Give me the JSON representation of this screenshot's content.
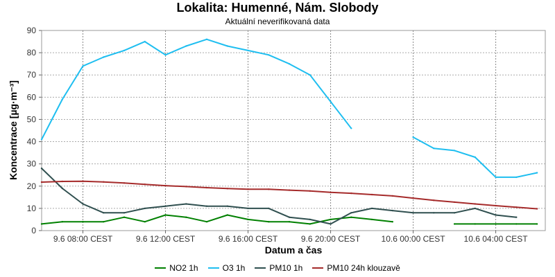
{
  "chart_data": {
    "type": "line",
    "title": "Lokalita: Humenné, Nám. Slobody",
    "subtitle": "Aktuální neverifikovaná data",
    "xlabel": "Datum a čas",
    "ylabel": "Koncentrace [µg·m⁻³]",
    "ylim": [
      0,
      90
    ],
    "yticks": [
      0,
      10,
      20,
      30,
      40,
      50,
      60,
      70,
      80,
      90
    ],
    "x_hours": [
      6,
      7,
      8,
      9,
      10,
      11,
      12,
      13,
      14,
      15,
      16,
      17,
      18,
      19,
      20,
      21,
      22,
      23,
      24,
      25,
      26,
      27,
      28,
      29,
      30
    ],
    "x_range": [
      6,
      30.4
    ],
    "xticks": [
      {
        "hour": 8,
        "label": "9.6 08:00 CEST"
      },
      {
        "hour": 12,
        "label": "9.6 12:00 CEST"
      },
      {
        "hour": 16,
        "label": "9.6 16:00 CEST"
      },
      {
        "hour": 20,
        "label": "9.6 20:00 CEST"
      },
      {
        "hour": 24,
        "label": "10.6 00:00 CEST"
      },
      {
        "hour": 28,
        "label": "10.6 04:00 CEST"
      }
    ],
    "grid": true,
    "legend_position": "bottom",
    "series": [
      {
        "name": "NO2 1h",
        "color": "#008000",
        "values": [
          3,
          4,
          4,
          4,
          6,
          4,
          7,
          6,
          4,
          7,
          5,
          4,
          4,
          3,
          5,
          6,
          5,
          4,
          null,
          null,
          3,
          3,
          3,
          3,
          3
        ]
      },
      {
        "name": "O3 1h",
        "color": "#1EBEF0",
        "values": [
          41,
          59,
          74,
          78,
          81,
          85,
          79,
          83,
          86,
          83,
          81,
          79,
          75,
          70,
          58,
          46,
          null,
          null,
          42,
          37,
          36,
          33,
          24,
          24,
          26
        ]
      },
      {
        "name": "PM10 1h",
        "color": "#2F4F4F",
        "values": [
          28,
          19,
          12,
          8,
          8,
          10,
          11,
          12,
          11,
          11,
          10,
          10,
          6,
          5,
          3,
          8,
          10,
          9,
          8,
          8,
          8,
          10,
          7,
          6,
          null
        ]
      },
      {
        "name": "PM10 24h klouzavě",
        "color": "#A52A2A",
        "values": [
          21.8,
          22.1,
          22.2,
          21.9,
          21.4,
          20.8,
          20.2,
          19.8,
          19.3,
          18.9,
          18.6,
          18.6,
          18.2,
          17.8,
          17.2,
          16.8,
          16.2,
          15.6,
          14.6,
          13.6,
          12.8,
          12,
          11.2,
          10.5,
          9.8
        ]
      }
    ]
  }
}
